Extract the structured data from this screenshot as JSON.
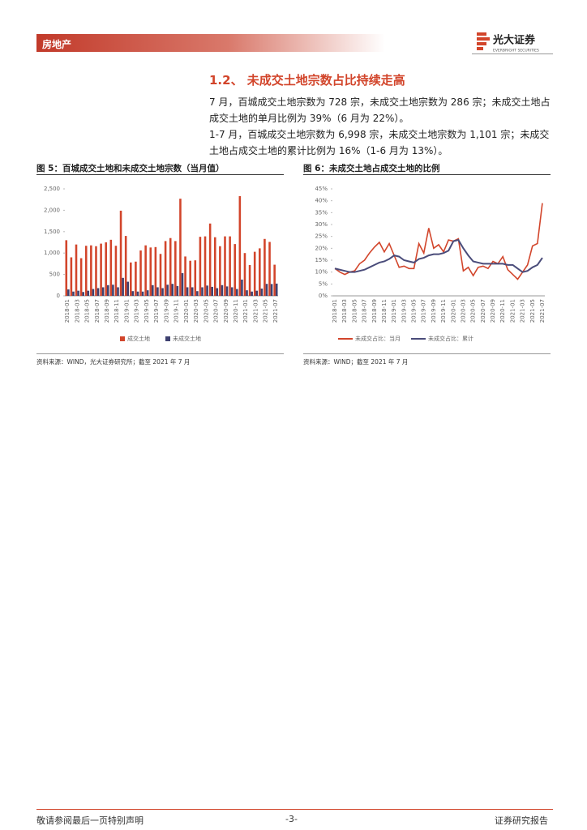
{
  "header": {
    "section": "房地产",
    "brand": "光大证券",
    "brand_en": "EVERBRIGHT SECURITIES"
  },
  "heading": "1.2、 未成交土地宗数占比持续走高",
  "paragraphs": [
    "7 月，百城成交土地宗数为 728 宗，未成交土地宗数为 286 宗；未成交土地占成交土地的单月比例为 39%（6 月为 22%）。",
    "1-7 月，百城成交土地宗数为 6,998 宗，未成交土地宗数为 1,101 宗；未成交土地占成交土地的累计比例为 16%（1-6 月为 13%）。"
  ],
  "chart_data": [
    {
      "type": "bar",
      "title": "图 5：百城成交土地和未成交土地宗数（当月值）",
      "source": "资料来源：WIND，光大证券研究所；截至 2021 年 7 月",
      "categories": [
        "2018-01",
        null,
        "2018-03",
        null,
        "2018-05",
        null,
        "2018-07",
        null,
        "2018-09",
        null,
        "2018-11",
        null,
        "2019-01",
        null,
        "2019-03",
        null,
        "2019-05",
        null,
        "2019-07",
        null,
        "2019-09",
        null,
        "2019-11",
        null,
        "2020-01",
        null,
        "2020-03",
        null,
        "2020-05",
        null,
        "2020-07",
        null,
        "2020-09",
        null,
        "2020-11",
        null,
        "2021-01",
        null,
        "2021-03",
        null,
        "2021-05",
        null,
        "2021-07"
      ],
      "series": [
        {
          "name": "成交土地",
          "color": "#d2452b",
          "values": [
            1300,
            900,
            1200,
            880,
            1170,
            1180,
            1160,
            1220,
            1250,
            1310,
            1170,
            1990,
            1400,
            780,
            800,
            1060,
            1180,
            1130,
            1140,
            980,
            1280,
            1350,
            1280,
            2270,
            920,
            820,
            830,
            1380,
            1390,
            1690,
            1370,
            1160,
            1390,
            1390,
            1210,
            2330,
            1000,
            720,
            1030,
            1110,
            1330,
            1260,
            728
          ]
        },
        {
          "name": "未成交土地",
          "color": "#3e4170",
          "values": [
            150,
            100,
            120,
            90,
            120,
            160,
            180,
            200,
            250,
            260,
            200,
            420,
            330,
            110,
            100,
            100,
            130,
            250,
            200,
            180,
            260,
            280,
            230,
            530,
            200,
            200,
            110,
            200,
            240,
            210,
            180,
            250,
            220,
            200,
            160,
            380,
            130,
            100,
            120,
            170,
            280,
            277,
            286
          ]
        }
      ],
      "ylim": [
        0,
        2500
      ],
      "yticks": [
        0,
        500,
        {
          "value": 1000,
          "label": "1,000"
        },
        {
          "value": 1500,
          "label": "1,500"
        },
        {
          "value": 2000,
          "label": "2,000"
        },
        {
          "value": 2500,
          "label": "2,500"
        }
      ],
      "grid": false,
      "legend": "bottom"
    },
    {
      "type": "line",
      "title": "图 6：未成交土地占成交土地的比例",
      "source": "资料来源：WIND；截至 2021 年 7 月",
      "categories": [
        "2018-01",
        null,
        "2018-03",
        null,
        "2018-05",
        null,
        "2018-07",
        null,
        "2018-09",
        null,
        "2018-11",
        null,
        "2019-01",
        null,
        "2019-03",
        null,
        "2019-05",
        null,
        "2019-07",
        null,
        "2019-09",
        null,
        "2019-11",
        null,
        "2020-01",
        null,
        "2020-03",
        null,
        "2020-05",
        null,
        "2020-07",
        null,
        "2020-09",
        null,
        "2020-11",
        null,
        "2021-01",
        null,
        "2021-03",
        null,
        "2021-05",
        null,
        "2021-07"
      ],
      "series": [
        {
          "name": "未成交占比：当月",
          "color": "#d2452b",
          "values": [
            11.5,
            10,
            9,
            10,
            10.5,
            13.5,
            15,
            18,
            20.5,
            22.5,
            18.5,
            22,
            17,
            12,
            12.5,
            11.5,
            11.5,
            22,
            18,
            28.5,
            20,
            21.5,
            18.5,
            23.5,
            23,
            24,
            10.5,
            12,
            8.5,
            12,
            12.5,
            11.5,
            14.5,
            13.5,
            16.5,
            11,
            9,
            7,
            10,
            13,
            21,
            22,
            39
          ]
        },
        {
          "name": "未成交占比：累计",
          "color": "#4a4c7a",
          "values": [
            11.5,
            11,
            10.5,
            10,
            10,
            10.5,
            11,
            12,
            13,
            14,
            14.5,
            15.5,
            17,
            16.5,
            15,
            14.5,
            14,
            15.5,
            16,
            17,
            17.5,
            17.5,
            18,
            19,
            23,
            23.5,
            20,
            17,
            14.5,
            14,
            13.5,
            13.5,
            13.5,
            13.5,
            13.5,
            13,
            13,
            11.5,
            10,
            10.5,
            12,
            13,
            16
          ]
        }
      ],
      "ylim": [
        0,
        45
      ],
      "yticks": [
        {
          "value": 0,
          "label": "0%"
        },
        {
          "value": 5,
          "label": "5%"
        },
        {
          "value": 10,
          "label": "10%"
        },
        {
          "value": 15,
          "label": "15%"
        },
        {
          "value": 20,
          "label": "20%"
        },
        {
          "value": 25,
          "label": "25%"
        },
        {
          "value": 30,
          "label": "30%"
        },
        {
          "value": 35,
          "label": "35%"
        },
        {
          "value": 40,
          "label": "40%"
        },
        {
          "value": 45,
          "label": "45%"
        }
      ],
      "grid": false,
      "legend": "bottom"
    }
  ],
  "footer": {
    "left": "敬请参阅最后一页特别声明",
    "center": "-3-",
    "right": "证券研究报告"
  }
}
